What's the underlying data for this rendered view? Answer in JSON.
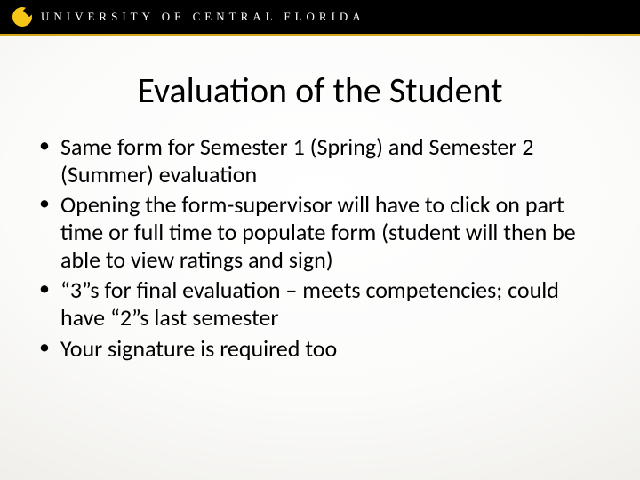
{
  "header": {
    "university_name": "UNIVERSITY OF CENTRAL FLORIDA",
    "logo_bg": "#f5c518",
    "bar_bg": "#000000",
    "rule_color": "#d4a915",
    "text_color": "#ffffff"
  },
  "slide": {
    "title": "Evaluation of the Student",
    "title_fontsize": 40,
    "title_color": "#000000",
    "bullets": [
      "Same form for Semester 1 (Spring) and Semester 2 (Summer) evaluation",
      "Opening the form-supervisor will have to click on part time or full time to populate form (student will then be able to view ratings and sign)",
      "“3”s for final evaluation – meets competencies; could have “2”s last semester",
      "Your signature is required too"
    ],
    "bullet_fontsize": 26,
    "bullet_color": "#000000",
    "background_gradient_inner": "#ffffff",
    "background_gradient_outer": "#d8d5cc"
  }
}
